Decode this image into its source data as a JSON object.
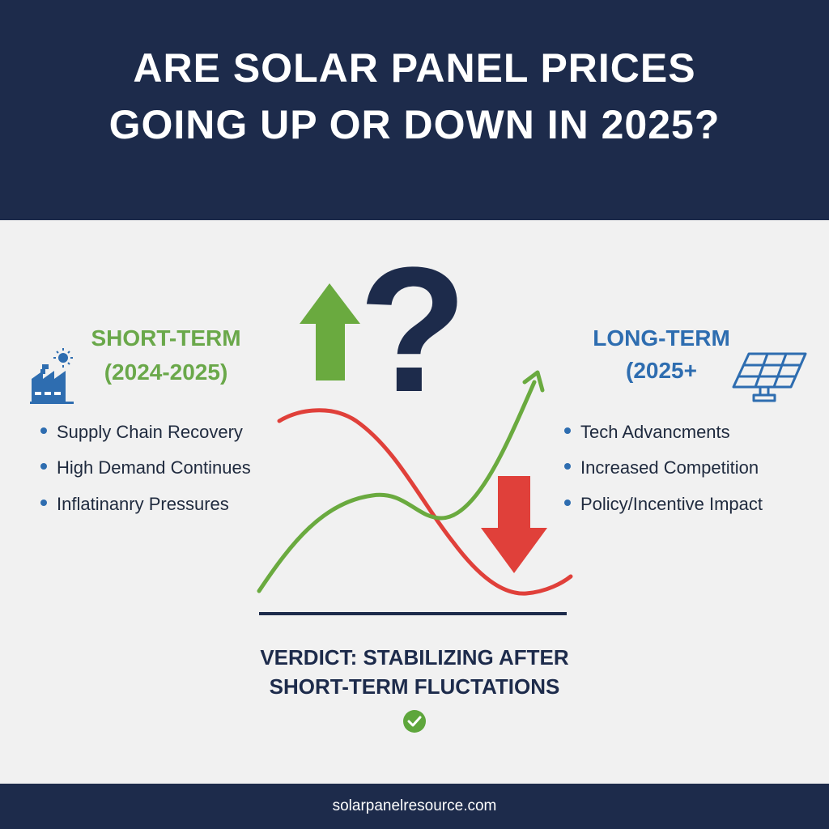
{
  "header": {
    "title_line1": "ARE SOLAR PANEL PRICES",
    "title_line2": "GOING UP OR DOWN IN 2025?"
  },
  "short_term": {
    "title": "SHORT-TERM",
    "period": "(2024-2025)",
    "icon": "factory-sun-icon",
    "bullets": [
      "Supply Chain Recovery",
      "High Demand Continues",
      "Inflatinanry Pressures"
    ]
  },
  "long_term": {
    "title": "LONG-TERM",
    "period": "(2025+",
    "icon": "solar-panel-icon",
    "bullets": [
      "Tech Advancments",
      "Increased Competition",
      "Policy/Incentive Impact"
    ]
  },
  "graphic": {
    "icons": [
      "up-arrow-icon",
      "question-mark-icon",
      "down-arrow-icon"
    ]
  },
  "verdict": {
    "line1": "VERDICT: STABILIZING AFTER",
    "line2": "SHORT-TERM FLUCTATIONS",
    "icon": "check-circle-icon"
  },
  "footer": {
    "url": "solarpanelresource.com"
  },
  "colors": {
    "navy": "#1d2b4b",
    "green": "#6aa84a",
    "blue": "#2e6db0",
    "red": "#e0403a",
    "background": "#f1f1f1"
  }
}
